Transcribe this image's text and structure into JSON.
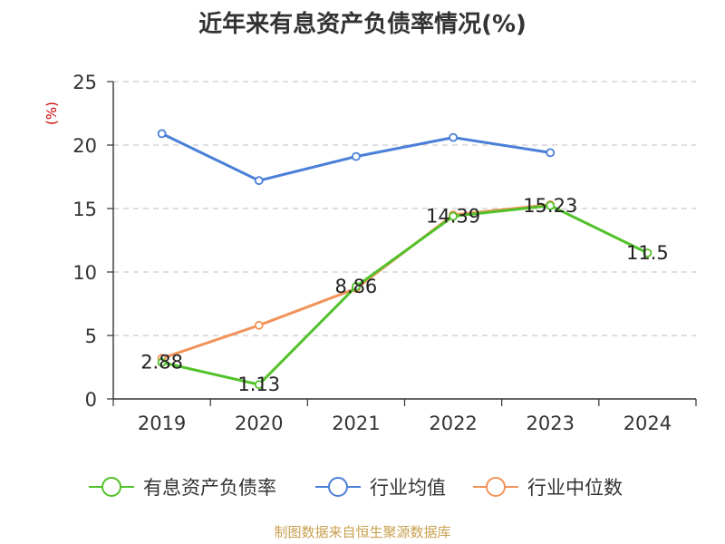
{
  "chart_data": {
    "type": "line",
    "title": "近年来有息资产负债率情况(%)",
    "ylabel": "(%)",
    "xlabel": "",
    "categories": [
      "2019",
      "2020",
      "2021",
      "2022",
      "2023",
      "2024"
    ],
    "y_ticks": [
      "0",
      "5",
      "10",
      "15",
      "20",
      "25"
    ],
    "ylim": [
      0,
      25
    ],
    "grid": true,
    "legend_position": "bottom",
    "series": [
      {
        "name": "有息资产负债率",
        "color": "#52c22a",
        "values": [
          2.88,
          1.13,
          8.86,
          14.39,
          15.23,
          11.5
        ],
        "labels": [
          "2.88",
          "1.13",
          "8.86",
          "14.39",
          "15.23",
          "11.5"
        ]
      },
      {
        "name": "行业均值",
        "color": "#4a7fd8",
        "values": [
          20.9,
          17.2,
          19.1,
          20.6,
          19.4,
          null
        ]
      },
      {
        "name": "行业中位数",
        "color": "#f2935a",
        "values": [
          3.2,
          5.8,
          8.7,
          14.5,
          15.3,
          null
        ]
      }
    ]
  },
  "source": "制图数据来自恒生聚源数据库",
  "colors": {
    "title": "#333333",
    "axis": "#333333",
    "grid": "#cccccc",
    "ylabel": "#cc0000",
    "source": "#c8a050"
  }
}
